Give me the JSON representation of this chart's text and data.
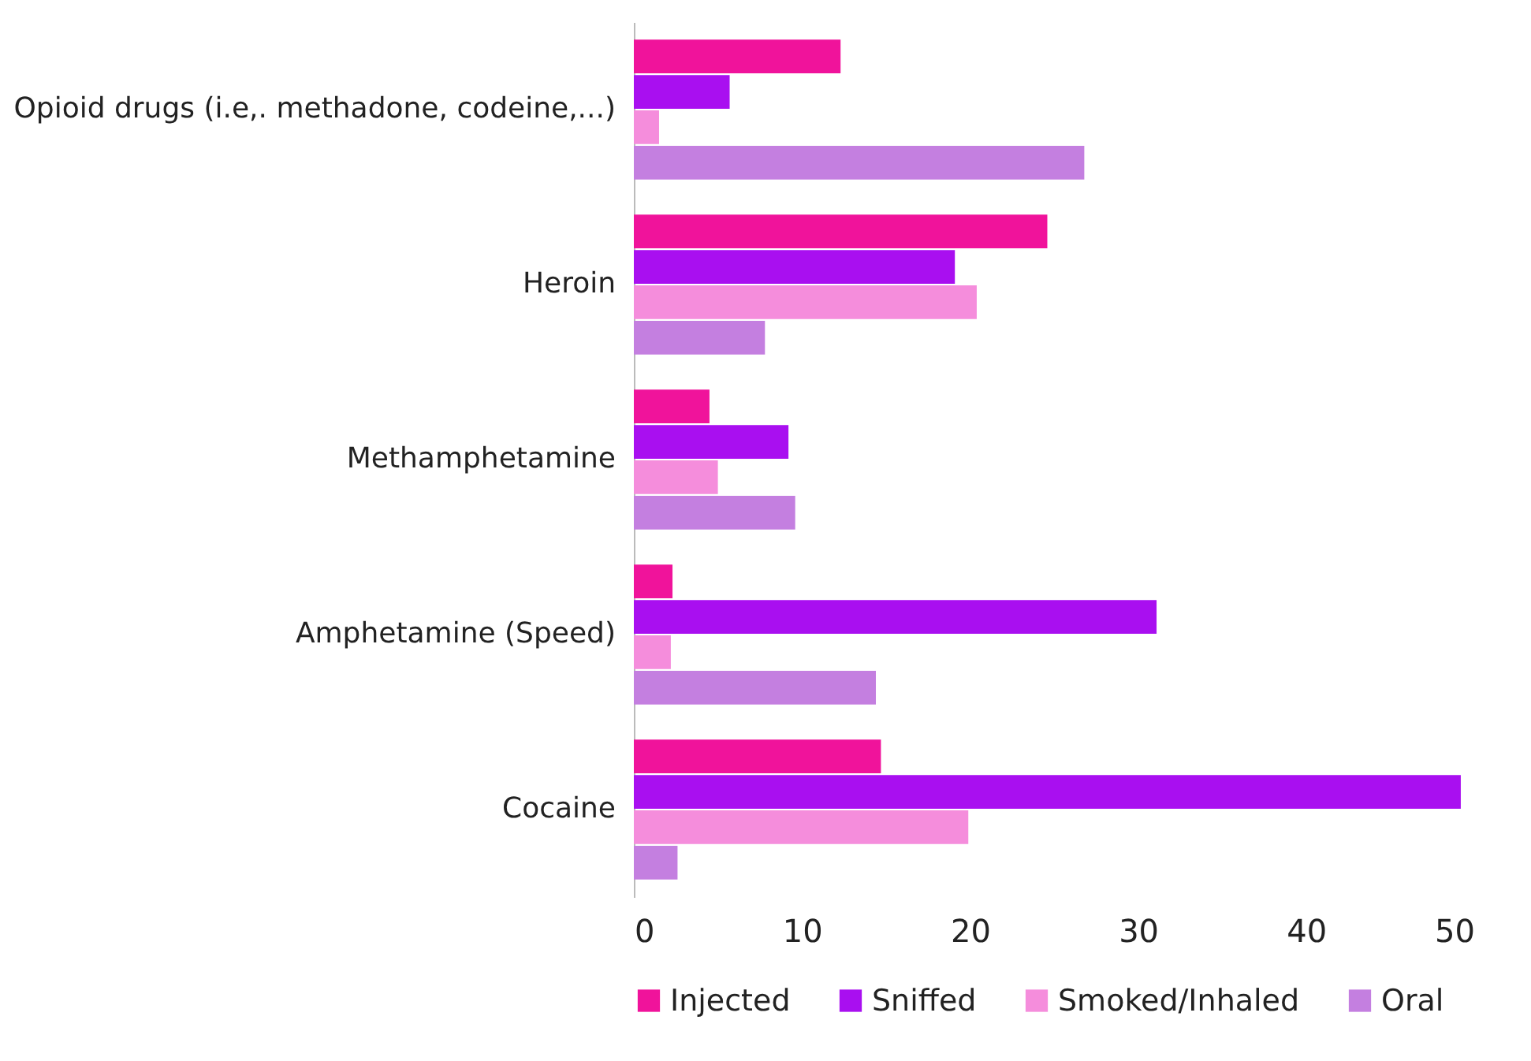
{
  "chart_data": {
    "type": "bar",
    "orientation": "horizontal",
    "categories": [
      "Opioid drugs (i.e,. methadone, codeine,...)",
      "Heroin",
      "Methamphetamine",
      "Amphetamine (Speed)",
      "Cocaine"
    ],
    "series": [
      {
        "name": "Injected",
        "color": "#f0139b",
        "values": [
          12.3,
          24.6,
          4.5,
          2.3,
          14.7
        ]
      },
      {
        "name": "Sniffed",
        "color": "#a90ff0",
        "values": [
          5.7,
          19.1,
          9.2,
          31.1,
          49.2
        ]
      },
      {
        "name": "Smoked/Inhaled",
        "color": "#f58ddc",
        "values": [
          1.5,
          20.4,
          5.0,
          2.2,
          19.9
        ]
      },
      {
        "name": "Oral",
        "color": "#c47fe0",
        "values": [
          26.8,
          7.8,
          9.6,
          14.4,
          2.6
        ]
      }
    ],
    "xlim": [
      0,
      50
    ],
    "xticks": [
      0,
      10,
      20,
      30,
      40,
      50
    ],
    "grid": false,
    "legend": "bottom"
  }
}
